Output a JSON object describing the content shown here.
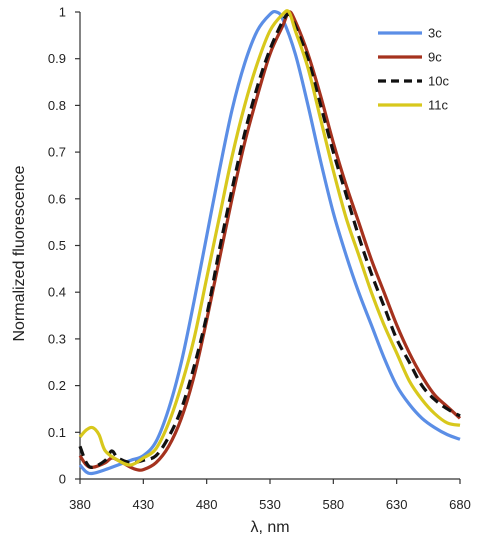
{
  "chart_data": {
    "type": "line",
    "title": "",
    "xlabel": "λ, nm",
    "ylabel": "Normalized fluorescence",
    "xlim": [
      380,
      680
    ],
    "ylim": [
      0,
      1
    ],
    "xticks": [
      "380",
      "430",
      "480",
      "530",
      "580",
      "630",
      "680"
    ],
    "yticks": [
      "0",
      "0.1",
      "0.2",
      "0.3",
      "0.4",
      "0.5",
      "0.6",
      "0.7",
      "0.8",
      "0.9",
      "1"
    ],
    "grid": false,
    "legend_position": "top-right",
    "series": [
      {
        "name": "3c",
        "color": "#5b8ee6",
        "dash": "solid",
        "points": [
          [
            380,
            0.03
          ],
          [
            385,
            0.015
          ],
          [
            390,
            0.012
          ],
          [
            400,
            0.02
          ],
          [
            410,
            0.03
          ],
          [
            420,
            0.04
          ],
          [
            430,
            0.05
          ],
          [
            440,
            0.08
          ],
          [
            450,
            0.15
          ],
          [
            460,
            0.25
          ],
          [
            470,
            0.38
          ],
          [
            480,
            0.52
          ],
          [
            490,
            0.66
          ],
          [
            500,
            0.79
          ],
          [
            510,
            0.89
          ],
          [
            520,
            0.96
          ],
          [
            530,
            0.995
          ],
          [
            535,
            1.0
          ],
          [
            540,
            0.985
          ],
          [
            550,
            0.91
          ],
          [
            560,
            0.8
          ],
          [
            570,
            0.68
          ],
          [
            580,
            0.57
          ],
          [
            590,
            0.48
          ],
          [
            600,
            0.4
          ],
          [
            610,
            0.33
          ],
          [
            620,
            0.26
          ],
          [
            630,
            0.2
          ],
          [
            640,
            0.16
          ],
          [
            650,
            0.13
          ],
          [
            660,
            0.11
          ],
          [
            670,
            0.095
          ],
          [
            680,
            0.085
          ]
        ]
      },
      {
        "name": "9c",
        "color": "#a5321e",
        "dash": "solid",
        "points": [
          [
            380,
            0.05
          ],
          [
            385,
            0.03
          ],
          [
            390,
            0.025
          ],
          [
            400,
            0.035
          ],
          [
            405,
            0.045
          ],
          [
            410,
            0.04
          ],
          [
            420,
            0.025
          ],
          [
            425,
            0.02
          ],
          [
            430,
            0.02
          ],
          [
            440,
            0.035
          ],
          [
            450,
            0.07
          ],
          [
            460,
            0.13
          ],
          [
            470,
            0.22
          ],
          [
            480,
            0.34
          ],
          [
            490,
            0.47
          ],
          [
            500,
            0.6
          ],
          [
            510,
            0.72
          ],
          [
            520,
            0.82
          ],
          [
            530,
            0.91
          ],
          [
            540,
            0.97
          ],
          [
            545,
            1.0
          ],
          [
            550,
            0.98
          ],
          [
            560,
            0.91
          ],
          [
            570,
            0.82
          ],
          [
            580,
            0.72
          ],
          [
            590,
            0.63
          ],
          [
            600,
            0.55
          ],
          [
            610,
            0.47
          ],
          [
            620,
            0.4
          ],
          [
            630,
            0.33
          ],
          [
            640,
            0.27
          ],
          [
            650,
            0.22
          ],
          [
            660,
            0.18
          ],
          [
            670,
            0.155
          ],
          [
            680,
            0.13
          ]
        ]
      },
      {
        "name": "10c",
        "color": "#111111",
        "dash": "dashed",
        "points": [
          [
            380,
            0.07
          ],
          [
            385,
            0.035
          ],
          [
            390,
            0.025
          ],
          [
            400,
            0.04
          ],
          [
            405,
            0.06
          ],
          [
            410,
            0.045
          ],
          [
            420,
            0.035
          ],
          [
            430,
            0.04
          ],
          [
            440,
            0.05
          ],
          [
            450,
            0.09
          ],
          [
            460,
            0.15
          ],
          [
            470,
            0.24
          ],
          [
            480,
            0.35
          ],
          [
            490,
            0.49
          ],
          [
            500,
            0.62
          ],
          [
            510,
            0.74
          ],
          [
            520,
            0.84
          ],
          [
            530,
            0.92
          ],
          [
            540,
            0.98
          ],
          [
            545,
            0.995
          ],
          [
            550,
            0.97
          ],
          [
            560,
            0.9
          ],
          [
            570,
            0.8
          ],
          [
            580,
            0.7
          ],
          [
            590,
            0.61
          ],
          [
            600,
            0.52
          ],
          [
            610,
            0.44
          ],
          [
            620,
            0.37
          ],
          [
            630,
            0.3
          ],
          [
            640,
            0.25
          ],
          [
            650,
            0.2
          ],
          [
            660,
            0.17
          ],
          [
            670,
            0.15
          ],
          [
            680,
            0.135
          ]
        ]
      },
      {
        "name": "11c",
        "color": "#d8c81c",
        "dash": "solid",
        "points": [
          [
            380,
            0.09
          ],
          [
            385,
            0.105
          ],
          [
            390,
            0.11
          ],
          [
            395,
            0.095
          ],
          [
            400,
            0.06
          ],
          [
            410,
            0.04
          ],
          [
            420,
            0.03
          ],
          [
            430,
            0.045
          ],
          [
            440,
            0.065
          ],
          [
            450,
            0.12
          ],
          [
            460,
            0.2
          ],
          [
            470,
            0.3
          ],
          [
            480,
            0.43
          ],
          [
            490,
            0.56
          ],
          [
            500,
            0.69
          ],
          [
            510,
            0.8
          ],
          [
            520,
            0.89
          ],
          [
            530,
            0.96
          ],
          [
            540,
            0.995
          ],
          [
            545,
            1.0
          ],
          [
            550,
            0.96
          ],
          [
            560,
            0.88
          ],
          [
            570,
            0.77
          ],
          [
            580,
            0.66
          ],
          [
            590,
            0.56
          ],
          [
            600,
            0.48
          ],
          [
            610,
            0.4
          ],
          [
            620,
            0.33
          ],
          [
            630,
            0.27
          ],
          [
            640,
            0.21
          ],
          [
            650,
            0.17
          ],
          [
            660,
            0.14
          ],
          [
            670,
            0.12
          ],
          [
            680,
            0.115
          ]
        ]
      }
    ]
  }
}
